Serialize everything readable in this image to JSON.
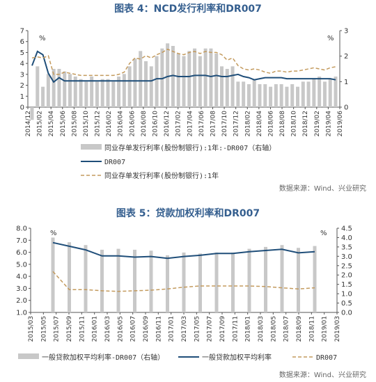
{
  "chart_data": [
    {
      "type": "line",
      "title": "图表 4：NCD发行利率和DR007",
      "unit_left": "%",
      "unit_right": "%",
      "ylim_left": [
        0,
        7
      ],
      "yticks_left": [
        "0",
        "1",
        "2",
        "3",
        "4",
        "5",
        "6",
        "7"
      ],
      "ylim_right": [
        0,
        3
      ],
      "yticks_right": [
        "0",
        "1",
        "2",
        "3"
      ],
      "x_ticks": [
        "2014/12",
        "2015/02",
        "2015/04",
        "2015/06",
        "2015/08",
        "2015/10",
        "2015/12",
        "2016/02",
        "2016/04",
        "2016/06",
        "2016/08",
        "2016/10",
        "2016/12",
        "2017/02",
        "2017/04",
        "2017/06",
        "2017/08",
        "2017/10",
        "2017/12",
        "2018/02",
        "2018/04",
        "2018/06",
        "2018/08",
        "2018/10",
        "2018/12",
        "2019/02",
        "2019/04",
        "2019/06"
      ],
      "series": [
        {
          "name": "同业存单发行利率(股份制银行):1年:-DR007（右轴）",
          "kind": "bar",
          "axis": "right",
          "values": [
            -0.5,
            1.6,
            0.8,
            1.3,
            1.5,
            1.5,
            1.4,
            1.3,
            1.2,
            1.1,
            1.0,
            1.2,
            1.0,
            1.1,
            1.1,
            1.0,
            1.2,
            1.3,
            1.6,
            1.9,
            2.2,
            1.8,
            1.6,
            2.0,
            2.3,
            2.5,
            2.4,
            2.1,
            2.0,
            2.2,
            2.3,
            2.0,
            2.3,
            2.3,
            2.1,
            1.6,
            1.5,
            1.6,
            1.0,
            1.0,
            0.9,
            1.1,
            0.9,
            0.9,
            0.8,
            0.9,
            0.9,
            0.8,
            0.9,
            0.8,
            1.0,
            1.0,
            1.1,
            1.2,
            1.0,
            1.1,
            1.2
          ]
        },
        {
          "name": "DR007",
          "kind": "line",
          "axis": "left",
          "values": [
            3.8,
            5.1,
            4.8,
            3.1,
            2.3,
            2.7,
            2.4,
            2.4,
            2.4,
            2.4,
            2.4,
            2.4,
            2.4,
            2.4,
            2.4,
            2.4,
            2.4,
            2.4,
            2.4,
            2.4,
            2.4,
            2.4,
            2.4,
            2.6,
            2.6,
            2.8,
            2.9,
            2.8,
            2.8,
            2.8,
            2.9,
            2.9,
            2.9,
            2.8,
            2.9,
            2.8,
            2.8,
            2.9,
            3.0,
            2.8,
            2.7,
            2.5,
            2.6,
            2.7,
            2.7,
            2.7,
            2.7,
            2.6,
            2.6,
            2.6,
            2.6,
            2.6,
            2.6,
            2.6,
            2.6,
            2.6,
            2.5
          ]
        },
        {
          "name": "同业存单发行利率(股份制银行):1年",
          "kind": "line-dashed",
          "axis": "left",
          "values": [
            4.5,
            4.6,
            4.5,
            4.7,
            3.0,
            3.0,
            3.2,
            3.1,
            3.0,
            2.9,
            2.9,
            2.9,
            2.9,
            2.9,
            2.9,
            2.9,
            3.0,
            3.2,
            4.0,
            4.5,
            4.4,
            4.7,
            4.5,
            4.8,
            5.0,
            5.3,
            5.1,
            4.9,
            4.8,
            5.0,
            5.1,
            4.9,
            5.1,
            5.0,
            5.0,
            4.8,
            4.3,
            4.5,
            3.8,
            3.5,
            3.4,
            3.5,
            3.4,
            3.2,
            3.1,
            3.3,
            3.3,
            3.2,
            3.3,
            3.3,
            3.4,
            3.5,
            3.6,
            3.5,
            3.4,
            3.6,
            3.7
          ]
        }
      ],
      "source": "数据来源：Wind、兴业研究"
    },
    {
      "type": "line",
      "title": "图表 5：贷款加权利率和DR007",
      "unit_left": "%",
      "unit_right": "%",
      "ylim_left": [
        1,
        8
      ],
      "yticks_left": [
        "1.0",
        "2.0",
        "3.0",
        "4.0",
        "5.0",
        "6.0",
        "7.0",
        "8.0"
      ],
      "ylim_right": [
        0,
        4.5
      ],
      "yticks_right": [
        "0.0",
        "0.5",
        "1.0",
        "1.5",
        "2.0",
        "2.5",
        "3.0",
        "3.5",
        "4.0",
        "4.5"
      ],
      "x_ticks": [
        "2015/03",
        "2015/05",
        "2015/07",
        "2015/09",
        "2015/11",
        "2016/01",
        "2016/03",
        "2016/05",
        "2016/07",
        "2016/09",
        "2016/11",
        "2017/01",
        "2017/03",
        "2017/05",
        "2017/07",
        "2017/09",
        "2017/11",
        "2018/01",
        "2018/03",
        "2018/05",
        "2018/07",
        "2018/09",
        "2018/11",
        "2019/01",
        "2019/03"
      ],
      "categories": [
        "2015Q1",
        "2015Q2",
        "2015Q3",
        "2015Q4",
        "2016Q1",
        "2016Q2",
        "2016Q3",
        "2016Q4",
        "2017Q1",
        "2017Q2",
        "2017Q3",
        "2017Q4",
        "2018Q1",
        "2018Q2",
        "2018Q3",
        "2018Q4",
        "2019Q1"
      ],
      "series": [
        {
          "name": "一般贷款加权平均利率-DR007（右轴）",
          "kind": "bar",
          "axis": "right",
          "values": [
            4.0,
            3.75,
            3.6,
            3.35,
            3.4,
            3.35,
            3.3,
            3.05,
            3.2,
            3.15,
            3.2,
            3.2,
            3.4,
            3.5,
            3.6,
            3.45,
            3.55
          ]
        },
        {
          "name": "一般贷款加权平均利率",
          "kind": "line",
          "axis": "left",
          "values": [
            6.8,
            6.5,
            6.2,
            5.7,
            5.7,
            5.6,
            5.65,
            5.5,
            5.65,
            5.75,
            5.9,
            5.9,
            6.05,
            6.15,
            6.25,
            5.95,
            6.05
          ]
        },
        {
          "name": "DR007",
          "kind": "line-dashed",
          "axis": "left",
          "values": [
            4.4,
            2.9,
            2.9,
            2.8,
            2.75,
            2.8,
            2.85,
            2.95,
            3.1,
            3.2,
            3.2,
            3.2,
            3.2,
            3.15,
            3.05,
            2.95,
            3.05
          ]
        }
      ],
      "source": "数据来源：Wind、兴业研究"
    }
  ],
  "colors": {
    "bar": "#c8c8c8",
    "line": "#1f4e79",
    "dashed": "#c39a5d",
    "title": "#355f8f"
  }
}
